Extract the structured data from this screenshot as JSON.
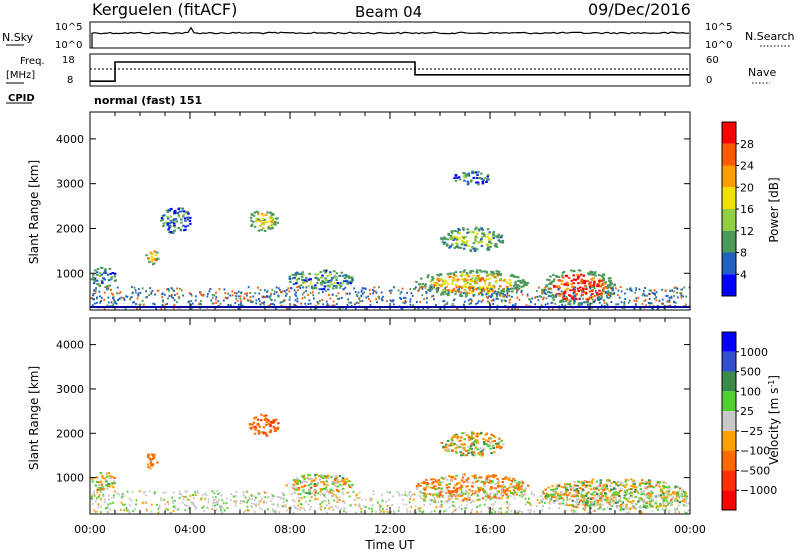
{
  "header": {
    "station": "Kerguelen (fitACF)",
    "beam": "Beam 04",
    "date": "09/Dec/2016"
  },
  "top_panel": {
    "nsky_label": "N.Sky",
    "nsearch_label": "N.Search",
    "tick_hi": "10^5",
    "tick_lo": "10^0",
    "freq_label": "Freq.",
    "freq_unit": "[MHz]",
    "freq_ticks": [
      "18",
      "8"
    ],
    "nave_label": "Nave",
    "nave_ticks": [
      "60",
      "0"
    ],
    "cpid_label": "CPID",
    "cpid_text": "normal (fast) 151"
  },
  "power_panel": {
    "ylabel": "Slant Range [km]",
    "cbar_label": "Power [dB]",
    "cbar_ticks": [
      "28",
      "24",
      "20",
      "16",
      "12",
      "8",
      "4"
    ],
    "cbar_colors": [
      "#ff0000",
      "#ff5a00",
      "#ff9c00",
      "#f0e000",
      "#90d040",
      "#4a9a5a",
      "#2060c0",
      "#0000ff"
    ]
  },
  "velocity_panel": {
    "ylabel": "Slant Range [km]",
    "cbar_label": "Velocity [m s",
    "cbar_label_sup": "-1",
    "cbar_label_end": "]",
    "cbar_ticks": [
      "1000",
      "500",
      "100",
      "25",
      "−25",
      "−100",
      "−500",
      "−1000"
    ],
    "cbar_colors": [
      "#0000ff",
      "#3050d0",
      "#3a8a4a",
      "#50d030",
      "#c8c8c8",
      "#ffa000",
      "#ff6a00",
      "#ff3000",
      "#ff0000"
    ]
  },
  "xaxis": {
    "label": "Time UT",
    "ticks": [
      "00:00",
      "04:00",
      "08:00",
      "12:00",
      "16:00",
      "20:00",
      "00:00"
    ]
  },
  "chart_data": {
    "type": "heatmap",
    "x_range_hours": [
      0,
      24
    ],
    "range_ticks_km": [
      1000,
      2000,
      3000,
      4000
    ],
    "ylim_km": [
      180,
      4600
    ],
    "freq_mhz": [
      [
        0,
        9.5
      ],
      [
        1,
        15.5
      ],
      [
        13,
        11.5
      ],
      [
        24,
        11.5
      ]
    ],
    "power_patches": [
      {
        "t": [
          0.0,
          1.0
        ],
        "r": [
          700,
          1150
        ],
        "dB": 10
      },
      {
        "t": [
          2.2,
          2.7
        ],
        "r": [
          1200,
          1600
        ],
        "dB": 22
      },
      {
        "t": [
          2.8,
          4.0
        ],
        "r": [
          1900,
          2500
        ],
        "dB": 7
      },
      {
        "t": [
          6.3,
          7.5
        ],
        "r": [
          1950,
          2450
        ],
        "dB": 18
      },
      {
        "t": [
          7.8,
          10.5
        ],
        "r": [
          650,
          1100
        ],
        "dB": 10
      },
      {
        "t": [
          13.0,
          17.5
        ],
        "r": [
          500,
          1100
        ],
        "dB": 20
      },
      {
        "t": [
          14.0,
          16.5
        ],
        "r": [
          1500,
          2050
        ],
        "dB": 12
      },
      {
        "t": [
          14.5,
          16.0
        ],
        "r": [
          3000,
          3300
        ],
        "dB": 6
      },
      {
        "t": [
          18.0,
          21.0
        ],
        "r": [
          300,
          1100
        ],
        "dB": 28
      }
    ],
    "velocity_patches": [
      {
        "t": [
          0.0,
          1.0
        ],
        "r": [
          700,
          1150
        ],
        "v": 0
      },
      {
        "t": [
          2.2,
          2.7
        ],
        "r": [
          1200,
          1600
        ],
        "v": -200
      },
      {
        "t": [
          6.3,
          7.5
        ],
        "r": [
          1950,
          2450
        ],
        "v": -400
      },
      {
        "t": [
          7.8,
          10.5
        ],
        "r": [
          650,
          1100
        ],
        "v": 0
      },
      {
        "t": [
          13.0,
          17.5
        ],
        "r": [
          500,
          1100
        ],
        "v": -100
      },
      {
        "t": [
          14.0,
          16.5
        ],
        "r": [
          1500,
          2050
        ],
        "v": 0
      },
      {
        "t": [
          18.0,
          24.0
        ],
        "r": [
          300,
          1000
        ],
        "v": 10
      }
    ]
  }
}
